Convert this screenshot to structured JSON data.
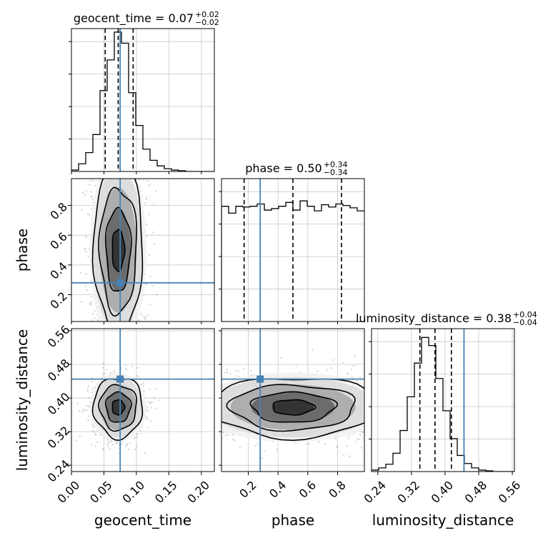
{
  "chart_data": {
    "type": "corner",
    "parameters": [
      "geocent_time",
      "phase",
      "luminosity_distance"
    ],
    "truths": {
      "geocent_time": 0.075,
      "phase": 0.28,
      "luminosity_distance": 0.445
    },
    "titles": [
      {
        "param": "geocent_time",
        "text": "geocent_time = 0.07",
        "plus": "+0.02",
        "minus": "−0.02"
      },
      {
        "param": "phase",
        "text": "phase = 0.50",
        "plus": "+0.34",
        "minus": "−0.34"
      },
      {
        "param": "luminosity_distance",
        "text": "luminosity_distance = 0.38",
        "plus": "+0.04",
        "minus": "−0.04"
      }
    ],
    "axes": {
      "geocent_time": {
        "range": [
          0.0,
          0.22
        ],
        "ticks": [
          0.0,
          0.05,
          0.1,
          0.15,
          0.2
        ],
        "tick_labels": [
          "0.00",
          "0.05",
          "0.10",
          "0.15",
          "0.20"
        ],
        "label": "geocent_time"
      },
      "phase": {
        "range": [
          0.02,
          0.98
        ],
        "ticks": [
          0.2,
          0.4,
          0.6,
          0.8
        ],
        "tick_labels": [
          "0.2",
          "0.4",
          "0.6",
          "0.8"
        ],
        "label": "phase"
      },
      "luminosity_distance": {
        "range": [
          0.225,
          0.565
        ],
        "ticks": [
          0.24,
          0.32,
          0.4,
          0.48,
          0.56
        ],
        "tick_labels": [
          "0.24",
          "0.32",
          "0.40",
          "0.48",
          "0.56"
        ],
        "label": "luminosity_distance"
      }
    },
    "marginals": {
      "geocent_time": {
        "bin_edges": [
          0.0,
          0.011,
          0.022,
          0.033,
          0.044,
          0.055,
          0.066,
          0.077,
          0.088,
          0.099,
          0.11,
          0.121,
          0.132,
          0.143,
          0.154,
          0.165,
          0.176,
          0.187,
          0.198,
          0.209,
          0.22
        ],
        "counts": [
          2,
          11,
          27,
          53,
          116,
          160,
          200,
          184,
          113,
          66,
          32,
          16,
          8,
          4,
          2,
          1,
          0,
          0,
          0,
          0
        ],
        "quantiles": [
          0.052,
          0.072,
          0.095
        ],
        "ylim": [
          0,
          205
        ]
      },
      "phase": {
        "bin_edges": [
          0.02,
          0.068,
          0.116,
          0.164,
          0.212,
          0.26,
          0.308,
          0.356,
          0.404,
          0.452,
          0.5,
          0.548,
          0.596,
          0.644,
          0.692,
          0.74,
          0.788,
          0.836,
          0.884,
          0.932,
          0.98
        ],
        "counts": [
          150,
          141,
          150,
          149,
          150,
          153,
          145,
          147,
          150,
          155,
          145,
          157,
          150,
          144,
          152,
          149,
          153,
          151,
          148,
          144
        ],
        "quantiles": [
          0.172,
          0.5,
          0.826
        ],
        "ylim": [
          0,
          186
        ]
      },
      "luminosity_distance": {
        "bin_edges": [
          0.225,
          0.242,
          0.259,
          0.276,
          0.293,
          0.31,
          0.327,
          0.344,
          0.361,
          0.378,
          0.395,
          0.412,
          0.429,
          0.446,
          0.463,
          0.48,
          0.497,
          0.514,
          0.531,
          0.548,
          0.565
        ],
        "counts": [
          2,
          5,
          10,
          25,
          56,
          102,
          148,
          183,
          172,
          127,
          83,
          45,
          22,
          11,
          5,
          2,
          1,
          0,
          0,
          0
        ],
        "quantiles": [
          0.34,
          0.376,
          0.415
        ],
        "ylim": [
          0,
          195
        ]
      }
    },
    "pairs": [
      {
        "x": "geocent_time",
        "y": "phase",
        "x_mean": 0.072,
        "x_sd": 0.019,
        "y_mean": 0.5,
        "y_sd": 0.28
      },
      {
        "x": "geocent_time",
        "y": "luminosity_distance",
        "x_mean": 0.072,
        "x_sd": 0.019,
        "y_mean": 0.378,
        "y_sd": 0.036
      },
      {
        "x": "phase",
        "y": "luminosity_distance",
        "x_mean": 0.5,
        "x_sd": 0.28,
        "y_mean": 0.378,
        "y_sd": 0.036
      }
    ],
    "colors": {
      "truth": "#4682b4",
      "hist": "#000000",
      "points": "#9a9a9a",
      "grid": "#c8c8c8"
    },
    "grid": true
  }
}
